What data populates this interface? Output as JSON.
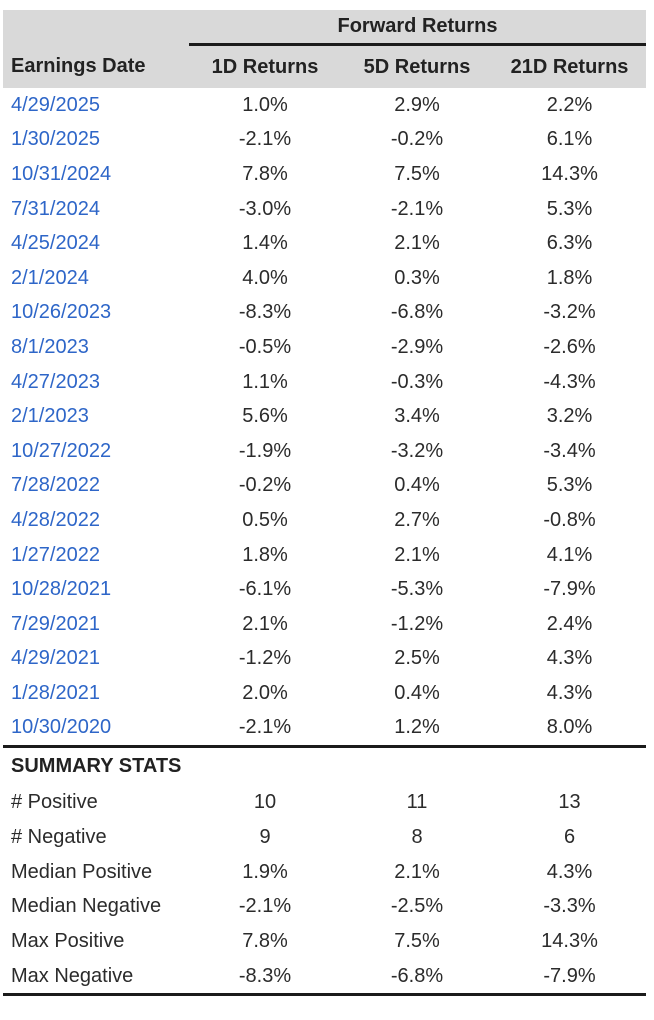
{
  "colors": {
    "header_bg": "#d9d9d9",
    "date_link_blue": "#2e66c8",
    "body_text": "#2b2b2b",
    "rule_black": "#1b1b1b"
  },
  "chart_data": {
    "type": "table",
    "group_header": "Forward Returns",
    "columns": [
      "Earnings Date",
      "1D Returns",
      "5D Returns",
      "21D Returns"
    ],
    "rows": [
      {
        "date": "4/29/2025",
        "r1d": "1.0%",
        "r5d": "2.9%",
        "r21d": "2.2%"
      },
      {
        "date": "1/30/2025",
        "r1d": "-2.1%",
        "r5d": "-0.2%",
        "r21d": "6.1%"
      },
      {
        "date": "10/31/2024",
        "r1d": "7.8%",
        "r5d": "7.5%",
        "r21d": "14.3%"
      },
      {
        "date": "7/31/2024",
        "r1d": "-3.0%",
        "r5d": "-2.1%",
        "r21d": "5.3%"
      },
      {
        "date": "4/25/2024",
        "r1d": "1.4%",
        "r5d": "2.1%",
        "r21d": "6.3%"
      },
      {
        "date": "2/1/2024",
        "r1d": "4.0%",
        "r5d": "0.3%",
        "r21d": "1.8%"
      },
      {
        "date": "10/26/2023",
        "r1d": "-8.3%",
        "r5d": "-6.8%",
        "r21d": "-3.2%"
      },
      {
        "date": "8/1/2023",
        "r1d": "-0.5%",
        "r5d": "-2.9%",
        "r21d": "-2.6%"
      },
      {
        "date": "4/27/2023",
        "r1d": "1.1%",
        "r5d": "-0.3%",
        "r21d": "-4.3%"
      },
      {
        "date": "2/1/2023",
        "r1d": "5.6%",
        "r5d": "3.4%",
        "r21d": "3.2%"
      },
      {
        "date": "10/27/2022",
        "r1d": "-1.9%",
        "r5d": "-3.2%",
        "r21d": "-3.4%"
      },
      {
        "date": "7/28/2022",
        "r1d": "-0.2%",
        "r5d": "0.4%",
        "r21d": "5.3%"
      },
      {
        "date": "4/28/2022",
        "r1d": "0.5%",
        "r5d": "2.7%",
        "r21d": "-0.8%"
      },
      {
        "date": "1/27/2022",
        "r1d": "1.8%",
        "r5d": "2.1%",
        "r21d": "4.1%"
      },
      {
        "date": "10/28/2021",
        "r1d": "-6.1%",
        "r5d": "-5.3%",
        "r21d": "-7.9%"
      },
      {
        "date": "7/29/2021",
        "r1d": "2.1%",
        "r5d": "-1.2%",
        "r21d": "2.4%"
      },
      {
        "date": "4/29/2021",
        "r1d": "-1.2%",
        "r5d": "2.5%",
        "r21d": "4.3%"
      },
      {
        "date": "1/28/2021",
        "r1d": "2.0%",
        "r5d": "0.4%",
        "r21d": "4.3%"
      },
      {
        "date": "10/30/2020",
        "r1d": "-2.1%",
        "r5d": "1.2%",
        "r21d": "8.0%"
      }
    ],
    "summary": {
      "title": "SUMMARY STATS",
      "rows": [
        {
          "label": "# Positive",
          "r1d": "10",
          "r5d": "11",
          "r21d": "13"
        },
        {
          "label": "# Negative",
          "r1d": "9",
          "r5d": "8",
          "r21d": "6"
        },
        {
          "label": "Median Positive",
          "r1d": "1.9%",
          "r5d": "2.1%",
          "r21d": "4.3%"
        },
        {
          "label": "Median Negative",
          "r1d": "-2.1%",
          "r5d": "-2.5%",
          "r21d": "-3.3%"
        },
        {
          "label": "Max Positive",
          "r1d": "7.8%",
          "r5d": "7.5%",
          "r21d": "14.3%"
        },
        {
          "label": "Max Negative",
          "r1d": "-8.3%",
          "r5d": "-6.8%",
          "r21d": "-7.9%"
        }
      ]
    }
  }
}
